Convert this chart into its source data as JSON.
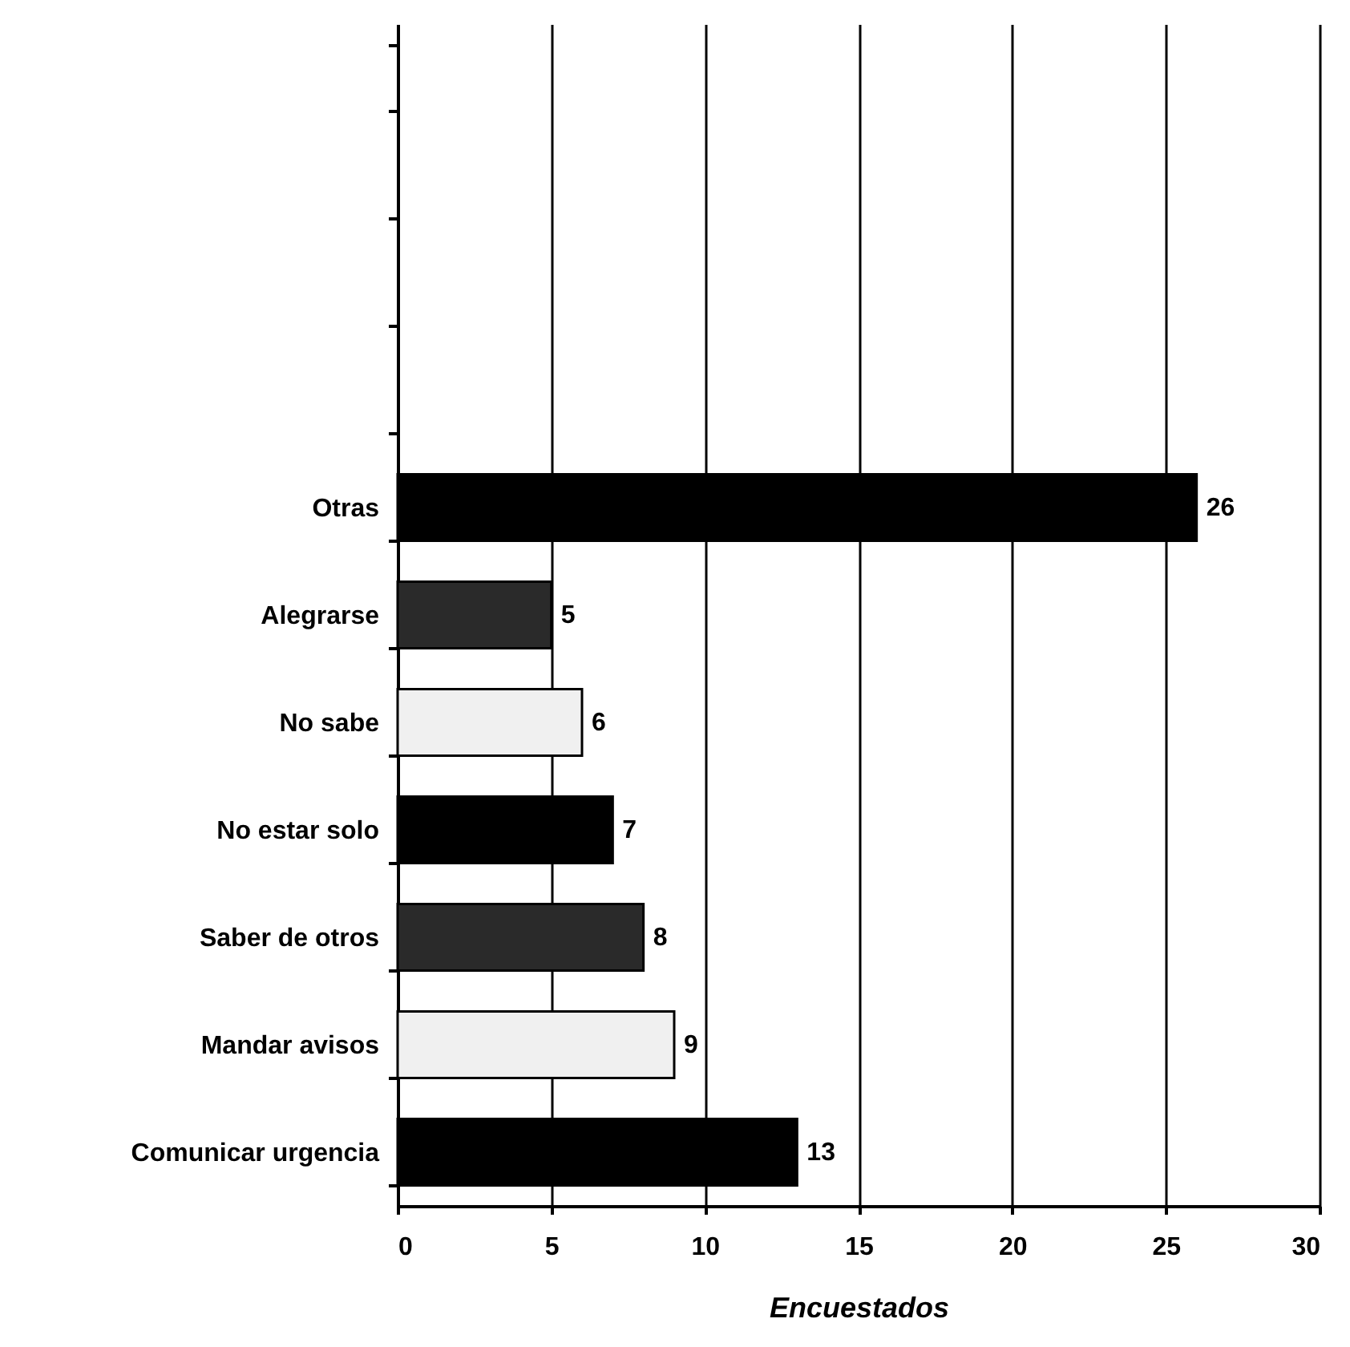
{
  "chart_data": {
    "type": "bar",
    "orientation": "horizontal",
    "xlabel": "Encuestados",
    "categories": [
      null,
      null,
      null,
      null,
      "Otras",
      "Alegrarse",
      "No sabe",
      "No estar solo",
      "Saber de otros",
      "Mandar avisos",
      "Comunicar urgencia"
    ],
    "values": [
      null,
      null,
      null,
      null,
      26,
      5,
      6,
      7,
      8,
      9,
      13
    ],
    "colors": [
      null,
      null,
      null,
      null,
      "#000000",
      "#2a2a2a",
      "#f0f0f0",
      "#000000",
      "#2a2a2a",
      "#f0f0f0",
      "#000000"
    ],
    "xlim": [
      0,
      30
    ],
    "xticks": [
      0,
      5,
      10,
      15,
      20,
      25,
      30
    ],
    "grid": "x",
    "data_labels": true
  }
}
